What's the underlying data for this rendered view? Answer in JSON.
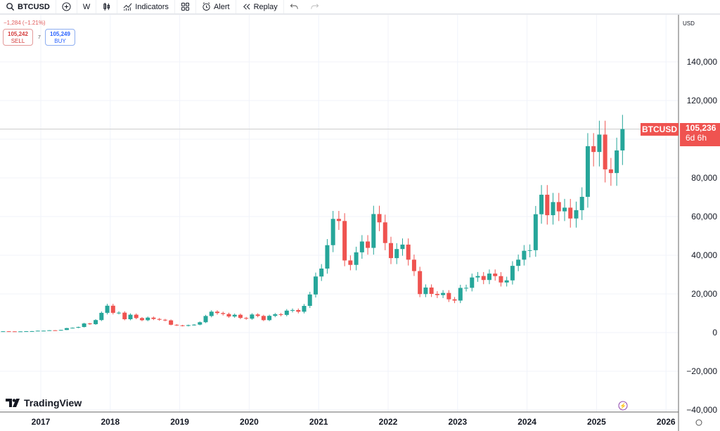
{
  "toolbar": {
    "symbol": "BTCUSD",
    "interval": "W",
    "indicators_label": "Indicators",
    "alert_label": "Alert",
    "replay_label": "Replay"
  },
  "quote": {
    "change": "−1,284 (−1.21%)",
    "sell_price": "105,242",
    "sell_label": "SELL",
    "spread": "7",
    "buy_price": "105,249",
    "buy_label": "BUY"
  },
  "price_axis": {
    "currency": "USD",
    "last_symbol": "BTCUSD",
    "last_price": "105,236",
    "countdown": "6d 6h"
  },
  "brand": "TradingView",
  "colors": {
    "up": "#26a69a",
    "down": "#ef5350",
    "last_price": "#ef5350",
    "grid": "#f0f3fa"
  },
  "chart_data": {
    "type": "candlestick",
    "symbol": "BTCUSD",
    "interval": "W",
    "ylim": [
      -40000,
      160000
    ],
    "yticks": [
      -40000,
      -20000,
      0,
      20000,
      40000,
      60000,
      80000,
      100000,
      120000,
      140000
    ],
    "ytick_labels": [
      "−40,000",
      "−20,000",
      "0",
      "20,000",
      "40,000",
      "60,000",
      "80,000",
      "",
      "120,000",
      "140,000"
    ],
    "xticks": [
      "2017",
      "2018",
      "2019",
      "2020",
      "2021",
      "2022",
      "2023",
      "2024",
      "2025",
      "2026"
    ],
    "grid": true,
    "start": "2016-06",
    "approx_monthly_close": [
      670,
      620,
      575,
      610,
      700,
      745,
      960,
      970,
      1190,
      1080,
      1350,
      2300,
      2480,
      2875,
      4700,
      4340,
      6470,
      10200,
      13900,
      10200,
      10300,
      6900,
      9240,
      7500,
      6400,
      7730,
      7030,
      6630,
      6320,
      4040,
      3740,
      3460,
      3850,
      4100,
      5350,
      8570,
      10800,
      10100,
      9600,
      8300,
      9200,
      7570,
      7190,
      9350,
      8600,
      6440,
      8650,
      9460,
      9140,
      11350,
      11650,
      10780,
      13800,
      19700,
      29000,
      33100,
      45200,
      58800,
      57700,
      37300,
      35000,
      41500,
      47100,
      43800,
      61300,
      57000,
      46300,
      38500,
      43200,
      45500,
      37700,
      31800,
      19900,
      23300,
      20000,
      19400,
      20500,
      17200,
      16550,
      23100,
      23150,
      28500,
      29250,
      27200,
      30500,
      29200,
      25900,
      27000,
      34500,
      37700,
      42300,
      42600,
      61200,
      71300,
      60700,
      67500,
      62700,
      64600,
      59000,
      63300,
      70200,
      96400,
      93400,
      102400,
      84400,
      82500,
      94200,
      105236
    ],
    "last_price": 105236
  }
}
